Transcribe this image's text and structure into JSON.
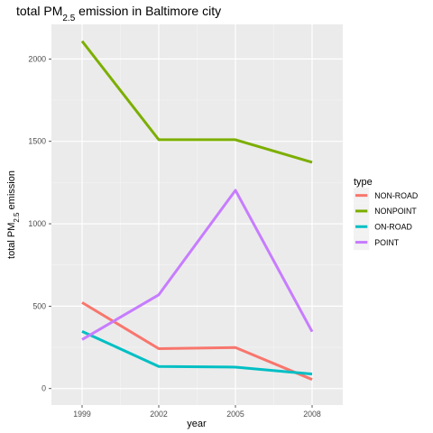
{
  "chart_data": {
    "type": "line",
    "title": {
      "main": "total PM",
      "sub": "2.5",
      "rest": " emission in Baltimore city"
    },
    "xlabel": "year",
    "ylabel": {
      "main": "total PM",
      "sub": "2.5",
      "rest": " emission"
    },
    "x": [
      1999,
      2002,
      2005,
      2008
    ],
    "xlim": [
      1997.8,
      2009.2
    ],
    "ylim": [
      -100,
      2210
    ],
    "yticks": [
      0,
      500,
      1000,
      1500,
      2000
    ],
    "grid": true,
    "legend_title": "type",
    "legend_position": "right",
    "series": [
      {
        "name": "NON-ROAD",
        "color": "#F8766D",
        "values": [
          522,
          242,
          249,
          55
        ]
      },
      {
        "name": "NONPOINT",
        "color": "#7CAE00",
        "values": [
          2108,
          1510,
          1510,
          1373
        ]
      },
      {
        "name": "ON-ROAD",
        "color": "#00BFC4",
        "values": [
          347,
          134,
          130,
          88
        ]
      },
      {
        "name": "POINT",
        "color": "#C77CFF",
        "values": [
          297,
          569,
          1203,
          345
        ]
      }
    ]
  }
}
